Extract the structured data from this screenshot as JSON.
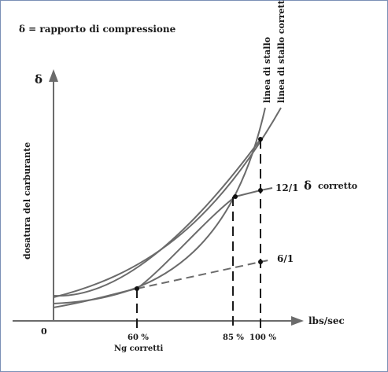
{
  "legend_note": "δ = rapporto di compressione",
  "y_axis_symbol": "δ",
  "y_axis_label": "dosatura del carburante",
  "x_axis_label": "lbs/sec",
  "origin_label": "0",
  "x_ticks": [
    "60 %",
    "85 %",
    "100 %"
  ],
  "x_caption": "Ng corretti",
  "curves": {
    "stall_line": "linea di stallo",
    "corrected_stall_line": "linea di stallo corretta"
  },
  "ratio_labels": {
    "high": "12/1",
    "low": "6/1"
  },
  "corrected_label": {
    "symbol": "δ",
    "text": "corretto"
  },
  "colors": {
    "curve": "#6b6b6b",
    "axis": "#6b6b6b",
    "text": "#1a1a1a",
    "border": "#7a8fb5"
  }
}
